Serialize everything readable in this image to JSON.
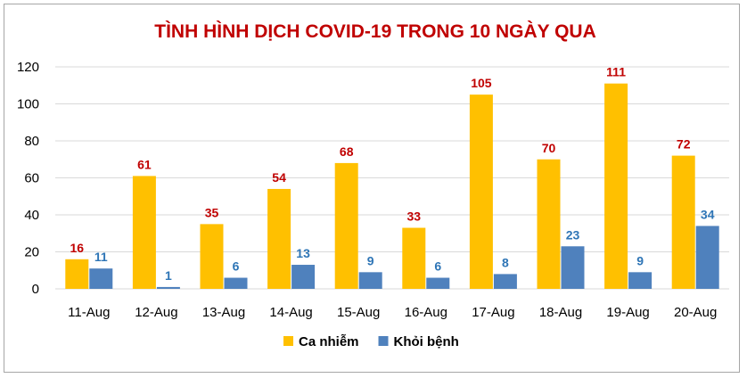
{
  "chart_data": {
    "type": "bar",
    "title": "TÌNH HÌNH DỊCH COVID-19 TRONG 10 NGÀY QUA",
    "title_color": "#c00000",
    "categories": [
      "11-Aug",
      "12-Aug",
      "13-Aug",
      "14-Aug",
      "15-Aug",
      "16-Aug",
      "17-Aug",
      "18-Aug",
      "19-Aug",
      "20-Aug"
    ],
    "series": [
      {
        "name": "Ca nhiễm",
        "color": "#ffc000",
        "label_color": "#c00000",
        "values": [
          16,
          61,
          35,
          54,
          68,
          33,
          105,
          70,
          111,
          72
        ]
      },
      {
        "name": "Khỏi bệnh",
        "color": "#4f81bd",
        "label_color": "#2e75b6",
        "values": [
          11,
          1,
          6,
          13,
          9,
          6,
          8,
          23,
          9,
          34
        ]
      }
    ],
    "ylim": [
      0,
      120
    ],
    "yticks": [
      0,
      20,
      40,
      60,
      80,
      100,
      120
    ],
    "grid": true,
    "legend_position": "bottom",
    "xlabel": "",
    "ylabel": ""
  }
}
